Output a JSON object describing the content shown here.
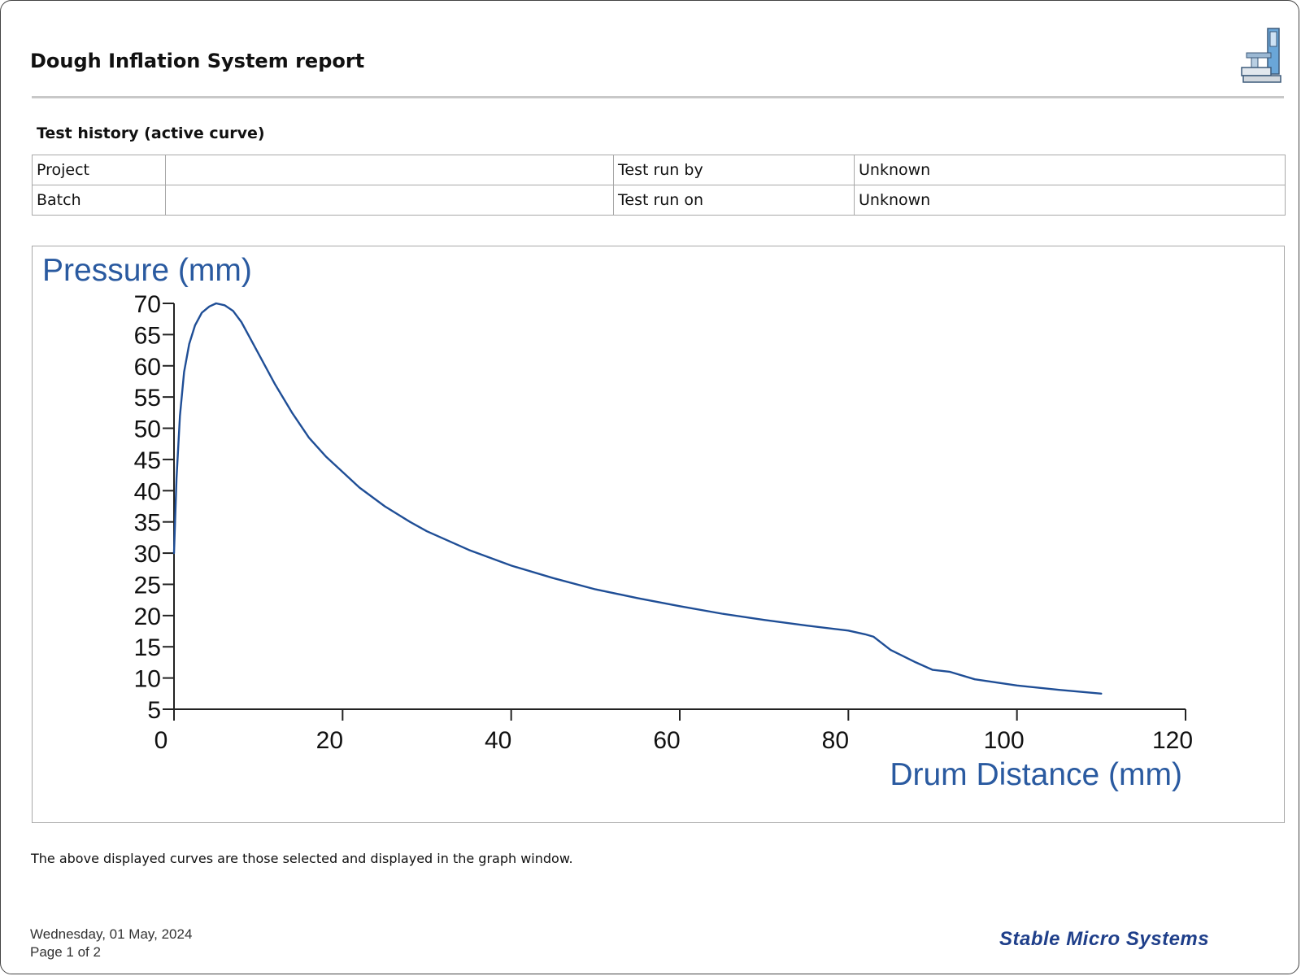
{
  "report": {
    "title": "Dough Inflation System report",
    "history_title": "Test history (active curve)",
    "table": [
      [
        "Project",
        "",
        "Test run by",
        "Unknown"
      ],
      [
        "Batch",
        "",
        "Test run on",
        "Unknown"
      ]
    ],
    "note": "The above displayed curves are those selected and displayed in the graph window.",
    "footer_date": "Wednesday, 01 May, 2024",
    "footer_page": "Page 1 of 2",
    "brand": "Stable Micro Systems",
    "logo_icon": "instrument-icon"
  },
  "chart_data": {
    "type": "line",
    "title": "",
    "ylabel": "Pressure (mm)",
    "xlabel": "Drum Distance (mm)",
    "xlim": [
      0,
      120
    ],
    "ylim": [
      5,
      70
    ],
    "xticks": [
      0,
      20,
      40,
      60,
      80,
      100,
      120
    ],
    "yticks": [
      5,
      10,
      15,
      20,
      25,
      30,
      35,
      40,
      45,
      50,
      55,
      60,
      65,
      70
    ],
    "grid": false,
    "line_color": "#1f4e96",
    "label_color": "#2a5aa0",
    "series": [
      {
        "x": [
          0,
          0.3,
          0.7,
          1.2,
          1.8,
          2.5,
          3.3,
          4.2,
          5.0,
          6.0,
          7.0,
          8.0,
          9.0,
          10.0,
          12.0,
          14.0,
          16.0,
          18.0,
          20.0,
          22.0,
          25.0,
          28.0,
          30.0,
          35.0,
          40.0,
          45.0,
          50.0,
          55.0,
          60.0,
          65.0,
          70.0,
          75.0,
          80.0,
          82.0,
          83.0,
          85.0,
          88.0,
          90.0,
          92.0,
          95.0,
          100.0,
          105.0,
          110.0
        ],
        "y": [
          30,
          42,
          52,
          59,
          63.5,
          66.5,
          68.5,
          69.5,
          70,
          69.7,
          68.8,
          67,
          64.5,
          62,
          57,
          52.5,
          48.5,
          45.5,
          43,
          40.5,
          37.5,
          35,
          33.5,
          30.5,
          28,
          26,
          24.2,
          22.8,
          21.5,
          20.3,
          19.3,
          18.4,
          17.6,
          17,
          16.6,
          14.5,
          12.5,
          11.3,
          11,
          9.8,
          8.8,
          8.1,
          7.5
        ]
      }
    ]
  }
}
